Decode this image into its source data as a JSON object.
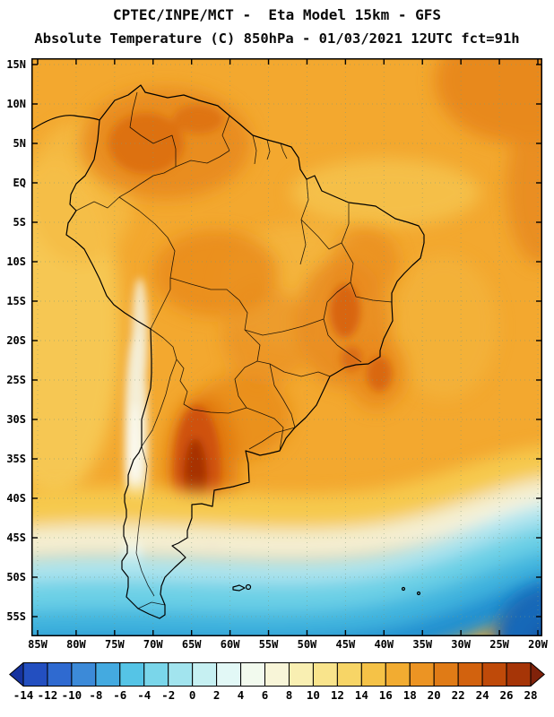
{
  "header": {
    "line1": "CPTEC/INPE/MCT -  Eta Model 15km - GFS",
    "line2": "Absolute Temperature (C) 850hPa - 01/03/2021 12UTC fct=91h"
  },
  "map": {
    "lat_labels": [
      "15N",
      "10N",
      "5N",
      "EQ",
      "5S",
      "10S",
      "15S",
      "20S",
      "25S",
      "30S",
      "35S",
      "40S",
      "45S",
      "50S",
      "55S"
    ],
    "lon_labels": [
      "85W",
      "80W",
      "75W",
      "70W",
      "65W",
      "60W",
      "55W",
      "50W",
      "45W",
      "40W",
      "35W",
      "30W",
      "25W",
      "20W"
    ]
  },
  "colorbar": {
    "tick_labels": [
      "-14",
      "-12",
      "-10",
      "-8",
      "-6",
      "-4",
      "-2",
      "0",
      "2",
      "4",
      "6",
      "8",
      "10",
      "12",
      "14",
      "16",
      "18",
      "20",
      "22",
      "24",
      "26",
      "28"
    ],
    "arrow_left_color": "#16339f",
    "arrow_right_color": "#80220a",
    "cell_colors": [
      "#234fc0",
      "#2f6ad0",
      "#3c8ad8",
      "#44aae0",
      "#55c4e6",
      "#7ad6ea",
      "#a2e4ee",
      "#c6f0f2",
      "#e2f8f6",
      "#f2faee",
      "#f8f5d8",
      "#f9efb2",
      "#f9e48c",
      "#f7d566",
      "#f5c247",
      "#f2ac31",
      "#ec9423",
      "#e07b16",
      "#d2620e",
      "#bf4a09",
      "#a63507"
    ]
  }
}
